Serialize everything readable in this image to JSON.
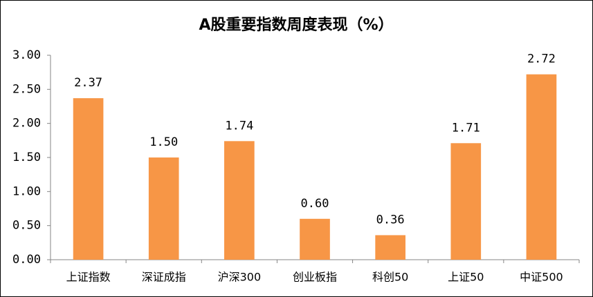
{
  "chart_data": {
    "type": "bar",
    "title": "A股重要指数周度表现（%）",
    "categories": [
      "上证指数",
      "深证成指",
      "沪深300",
      "创业板指",
      "科创50",
      "上证50",
      "中证500"
    ],
    "values": [
      2.37,
      1.5,
      1.74,
      0.6,
      0.36,
      1.71,
      2.72
    ],
    "value_labels": [
      "2.37",
      "1.50",
      "1.74",
      "0.60",
      "0.36",
      "1.71",
      "2.72"
    ],
    "color": "#f79646",
    "ylim": [
      0,
      3
    ],
    "yticks": [
      {
        "value": 0,
        "label": "0.00"
      },
      {
        "value": 0.5,
        "label": "0.50"
      },
      {
        "value": 1,
        "label": "1.00"
      },
      {
        "value": 1.5,
        "label": "1.50"
      },
      {
        "value": 2,
        "label": "2.00"
      },
      {
        "value": 2.5,
        "label": "2.50"
      },
      {
        "value": 3,
        "label": "3.00"
      }
    ],
    "grid": false
  }
}
